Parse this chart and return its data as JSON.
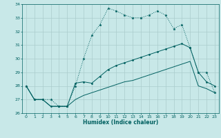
{
  "x": [
    0,
    1,
    2,
    3,
    4,
    5,
    6,
    7,
    8,
    9,
    10,
    11,
    12,
    13,
    14,
    15,
    16,
    17,
    18,
    19,
    20,
    21,
    22,
    23
  ],
  "line1_dotted": [
    28,
    27,
    27,
    27,
    26.5,
    26.5,
    28,
    30,
    31.7,
    32.5,
    33.7,
    33.5,
    33.2,
    33.0,
    33.0,
    33.2,
    33.5,
    33.2,
    32.2,
    32.5,
    30.8,
    29.0,
    29.0,
    27.5
  ],
  "line2_solid_markers": [
    28,
    27,
    27,
    26.5,
    26.5,
    26.5,
    28.2,
    28.3,
    28.2,
    28.7,
    29.2,
    29.5,
    29.7,
    29.9,
    30.1,
    30.3,
    30.5,
    30.7,
    30.9,
    31.1,
    30.8,
    29.0,
    28.3,
    28.0
  ],
  "line3_solid": [
    28,
    27,
    27,
    26.5,
    26.5,
    26.5,
    27.0,
    27.3,
    27.5,
    27.7,
    27.9,
    28.1,
    28.3,
    28.4,
    28.6,
    28.8,
    29.0,
    29.2,
    29.4,
    29.6,
    29.8,
    28.0,
    27.8,
    27.5
  ],
  "color": "#006060",
  "bg_color": "#c8e8e8",
  "grid_color": "#aacccc",
  "xlabel": "Humidex (Indice chaleur)",
  "ylim": [
    26,
    34
  ],
  "xlim": [
    -0.5,
    23.5
  ],
  "yticks": [
    26,
    27,
    28,
    29,
    30,
    31,
    32,
    33,
    34
  ],
  "xticks": [
    0,
    1,
    2,
    3,
    4,
    5,
    6,
    7,
    8,
    9,
    10,
    11,
    12,
    13,
    14,
    15,
    16,
    17,
    18,
    19,
    20,
    21,
    22,
    23
  ]
}
